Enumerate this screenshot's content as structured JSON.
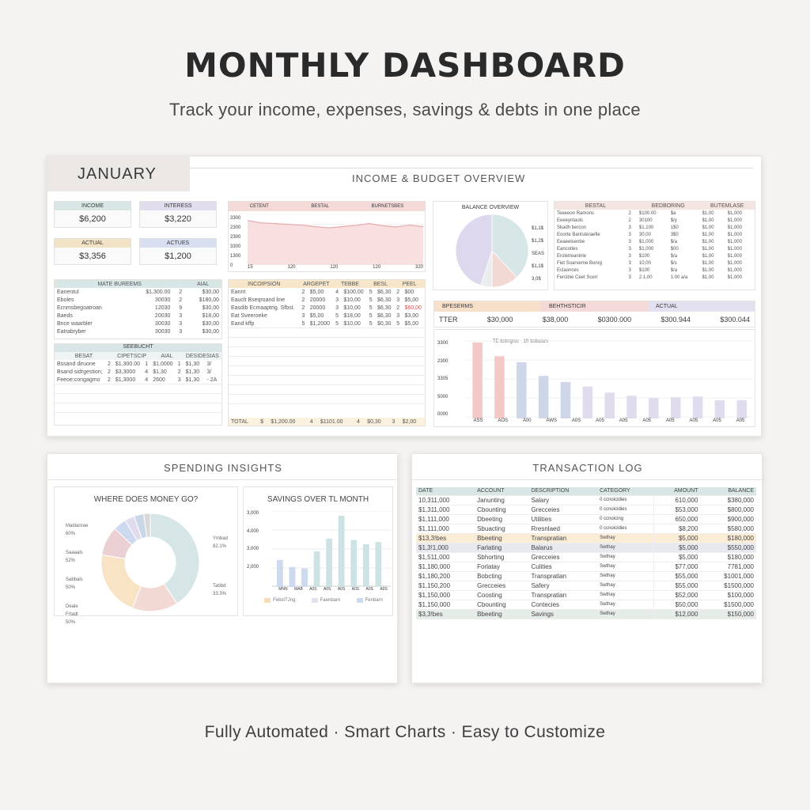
{
  "hero": {
    "title": "MONTHLY DASHBOARD",
    "subtitle": "Track your income, expenses, savings & debts in one place"
  },
  "footer": "Fully Automated · Smart Charts · Easy to Customize",
  "top": {
    "month": "JANUARY",
    "header": "INCOME & BUDGET OVERVIEW",
    "kpis": [
      {
        "label": "INCOME",
        "value": "$6,200",
        "color": "#d9e6e6"
      },
      {
        "label": "INTERESS",
        "value": "$3,220",
        "color": "#e1ddef"
      },
      {
        "label": "ACTUAL",
        "value": "$3,356",
        "color": "#f3e3c6"
      },
      {
        "label": "ACTUES",
        "value": "$1,200",
        "color": "#d8dff0"
      }
    ],
    "area_chart": {
      "headers": [
        "CETENT",
        "BESTAL",
        "BURNETSBES"
      ],
      "yticks": [
        "3300",
        "2300",
        "2300",
        "3300",
        "1300",
        "0"
      ],
      "xticks": [
        "15",
        "120",
        "120",
        "120",
        "320"
      ]
    },
    "budget_table": {
      "headers": [
        "MATE BUREEMS",
        "AIAL"
      ],
      "rows": [
        [
          "Eanentul",
          "$1,300.00",
          "2",
          "$30,00"
        ],
        [
          "Eboles",
          "30030",
          "2",
          "$180,00"
        ],
        [
          "Ecnmsbegoatroan",
          "12030",
          "9",
          "$30,00"
        ],
        [
          "Baeds",
          "20030",
          "3",
          "$18,00"
        ],
        [
          "Bnce waarbler",
          "30030",
          "3",
          "$30,00"
        ],
        [
          "Eatrabryber",
          "30030",
          "3",
          "$30,00"
        ]
      ]
    },
    "debt_table": {
      "title": "SEEBUCHT",
      "headers": [
        "BESAT",
        "CIPETSCIP",
        "AIAL",
        "DESIDESIAS"
      ],
      "rows": [
        [
          "Bssand diruone",
          "2",
          "$1,300.00",
          "1",
          "$1,0000",
          "1",
          "$1,30",
          "3/"
        ],
        [
          "Bsand sidrgestion;",
          "2",
          "$3,3000",
          "4",
          "$1,30",
          "2",
          "$1,30",
          "3/"
        ],
        [
          "Feeoe:congagmo",
          "2",
          "$1,3000",
          "4",
          "2600",
          "3",
          "$1,30",
          "- 2A"
        ]
      ]
    },
    "expense_table": {
      "headers": [
        "INCOIPSION",
        "ARGEPET",
        "TEBBE",
        "BESL",
        "PEEL"
      ],
      "rows": [
        [
          "Eannt",
          "2",
          "$5,00",
          "4",
          "$100,00",
          "5",
          "$6,30",
          "2",
          "$00"
        ],
        [
          "Eauclt Bseqroand line",
          "2",
          "20000",
          "3",
          "$10,00",
          "5",
          "$6,30",
          "3",
          "$5,00"
        ],
        [
          "Easdib Ecmaaptrig. Sfbst.",
          "2",
          "20000",
          "3",
          "$10,00",
          "5",
          "$6,30",
          "2",
          "$60,00"
        ],
        [
          "Eat Sveeroeke",
          "3",
          "$5,00",
          "5",
          "$18,00",
          "5",
          "$6,30",
          "3",
          "$3,00"
        ],
        [
          "Eand kffp",
          "5",
          "$1,2000",
          "5",
          "$10,00",
          "5",
          "$0,30",
          "5",
          "$5,00"
        ]
      ],
      "total": [
        "TOTAL",
        "$",
        "$1,200.00",
        "4",
        "$1101.00",
        "4",
        "$0,30",
        "3",
        "$2,00"
      ]
    },
    "balance": {
      "title": "BALANCE OVERVIEW",
      "legend": [
        "$1,1$",
        "$1,2$",
        "SEAS",
        "$1,1$",
        "3,0$"
      ]
    },
    "right_table": {
      "headers": [
        "BESTAL",
        "BEDBORING",
        "BUTEMLASE"
      ],
      "rows": [
        [
          "Teeeeon Ramons",
          "2",
          "$100.00",
          "$a",
          "$1,00",
          "$1,000"
        ],
        [
          "Eeeeyntaols",
          "2",
          "30100",
          "$/y",
          "$1,00",
          "$1,000"
        ],
        [
          "Skadh bercon",
          "3",
          "$1,100",
          "1$0",
          "$1,00",
          "$1,000"
        ],
        [
          "Eoorte Bantsteraefle",
          "3",
          "30,00",
          "3$0",
          "$1,00",
          "$1,000"
        ],
        [
          "Eeaeelsenbe",
          "3",
          "$1,000",
          "$/a",
          "$1,00",
          "$1,000"
        ],
        [
          "Eancotles",
          "3",
          "$1,000",
          "$00",
          "$1,00",
          "$1,000"
        ],
        [
          "Eroletreaninle",
          "3",
          "$100",
          "$/a",
          "$1,00",
          "$1,000"
        ],
        [
          "Fiet Soarverne Bonrg",
          "3",
          "10,00",
          "$/s",
          "$1,00",
          "$1,000"
        ],
        [
          "Eclaonces",
          "3",
          "$100",
          "$/a",
          "$1,00",
          "$1,000"
        ],
        [
          "Fercibie Ceet Scerr",
          "3",
          "2.1,00",
          "1.00 a/a",
          "$1,00",
          "$1,000"
        ]
      ]
    },
    "actual_bar": {
      "headers": [
        "BPESERMS",
        "BEHTHSTICIR",
        "ACTUAL"
      ],
      "row": [
        "TTER",
        "$30,000",
        "$38,000",
        "$0300.000",
        "$300.944",
        "$300.044"
      ]
    },
    "bar_chart": {
      "legend": "TE bstrrgroe · 1fr bsbaiars",
      "yticks": [
        "3300",
        "2300",
        "3305",
        "5000",
        "0000"
      ],
      "xticks": [
        "ASS",
        "AOS",
        "A00",
        "AWS",
        "A0S",
        "A05",
        "A05",
        "A05",
        "A05",
        "A05",
        "A05",
        "A05"
      ]
    }
  },
  "insights": {
    "header": "SPENDING INSIGHTS",
    "donut_title": "WHERE DOES MONEY GO?",
    "donut_labels": [
      "Maldanrae",
      "60%",
      "Saaaals",
      "52%",
      "Sabbals",
      "50%",
      "Deale",
      "Frtadt",
      "50%",
      "Ymbad",
      "82.1%",
      "Tabbd",
      "33.3%"
    ],
    "savings_title": "SAVINGS OVER TL MONTH",
    "savings_yticks": [
      "3,000",
      "4,000",
      "3,000",
      "2,000"
    ],
    "savings_xticks": [
      "MNN",
      "MAB",
      "A0S",
      "A0S",
      "A0S",
      "A0S",
      "A0S",
      "A0S"
    ],
    "savings_legend": [
      "FebstTJng",
      "Faenbarn",
      "Fenbarn"
    ]
  },
  "log": {
    "header": "TRANSACTION LOG",
    "columns": [
      "DATE",
      "ACCOUNT",
      "DESCRIPTION",
      "CATEGORY",
      "AMOUNT",
      "BALANCE"
    ],
    "rows": [
      [
        "10,311,000",
        "Janunting",
        "Salary",
        "0 ccnoicidies",
        "610,000",
        "$380,000"
      ],
      [
        "$1,311,000",
        "Cbounting",
        "Grecceies",
        "0 ccnoicidies",
        "$53,000",
        "$800,000"
      ],
      [
        "$1,111,000",
        "Dbeeting",
        "Utilities",
        "0 ccnoicing",
        "650,000",
        "$900,000"
      ],
      [
        "$1,111,000",
        "Sbuacting",
        "Rresnlaed",
        "0 ccnoicidies",
        "$8,200",
        "$580,000"
      ],
      [
        "$13,3!bes",
        "Bbeeting",
        "Transpratian",
        "Swthay",
        "$5,000",
        "$180,000"
      ],
      [
        "$1,3!1,000",
        "Farlating",
        "Balarus",
        "Swthay",
        "$5,000",
        "$550,000"
      ],
      [
        "$1,511,000",
        "Sbhorting",
        "Grecceies",
        "Swthay",
        "$5,000",
        "$180,000"
      ],
      [
        "$1,180,000",
        "Forlatay",
        "Culities",
        "Swthay",
        "$77,000",
        "7781,000"
      ],
      [
        "$1,180,200",
        "Bobcting",
        "Transpratian",
        "Swthay",
        "$55,000",
        "$1001,000"
      ],
      [
        "$1,150,200",
        "Grecceies",
        "Safery",
        "Swthay",
        "$55,000",
        "$1500,000"
      ],
      [
        "$1,150,000",
        "Coosting",
        "Transpratian",
        "Swthay",
        "$52,000",
        "$100,000"
      ],
      [
        "$1,150,000",
        "Cbounting",
        "Contecies",
        "Swthay",
        "$50,000",
        "$1500,000"
      ],
      [
        "$3,3!bes",
        "Bbeeting",
        "Savings",
        "Swthay",
        "$12,000",
        "$150,000"
      ]
    ],
    "highlights": {
      "4": "#fbecd6",
      "5": "#e8e9ef",
      "12": "#e6ece8"
    }
  },
  "chart_data": [
    {
      "type": "area",
      "values": [
        2900,
        2750,
        2700,
        2650,
        2600,
        2500,
        2420,
        2500,
        2580,
        2700,
        2560,
        2480,
        2600,
        2500
      ]
    },
    {
      "type": "pie",
      "values": [
        38,
        12,
        5,
        45
      ],
      "colors": [
        "#d6e6e6",
        "#f3d9d4",
        "#e9eded",
        "#ddd8ee"
      ]
    },
    {
      "type": "bar",
      "values": [
        100,
        82,
        74,
        56,
        48,
        42,
        34,
        30,
        27,
        28,
        29,
        24,
        24
      ],
      "colors": [
        "#f2c9c6",
        "#f2c9c6",
        "#cfd6ea",
        "#cfd6ea",
        "#cfd6ea",
        "#e0dcee",
        "#e0dcee",
        "#e0dcee",
        "#e0dcee",
        "#e0dcee",
        "#e0dcee",
        "#e0dcee",
        "#e0dcee"
      ]
    },
    {
      "type": "donut",
      "values": [
        38,
        14,
        20,
        9,
        4,
        3,
        3,
        2
      ],
      "colors": [
        "#d6e6e6",
        "#f3d9d4",
        "#f8e4c5",
        "#eacfd3",
        "#cdd9ef",
        "#e0dcee",
        "#c9d7e8",
        "#d9d9d9"
      ]
    },
    {
      "type": "bar",
      "values": [
        38,
        28,
        26,
        50,
        68,
        100,
        66,
        60,
        63
      ],
      "colors": [
        "#cdd9ec",
        "#cdd9ec",
        "#cdd9ec",
        "#cde3e3",
        "#cde3e3",
        "#cde3e3",
        "#cde3e3",
        "#cde3e3",
        "#cde3e3"
      ]
    }
  ]
}
